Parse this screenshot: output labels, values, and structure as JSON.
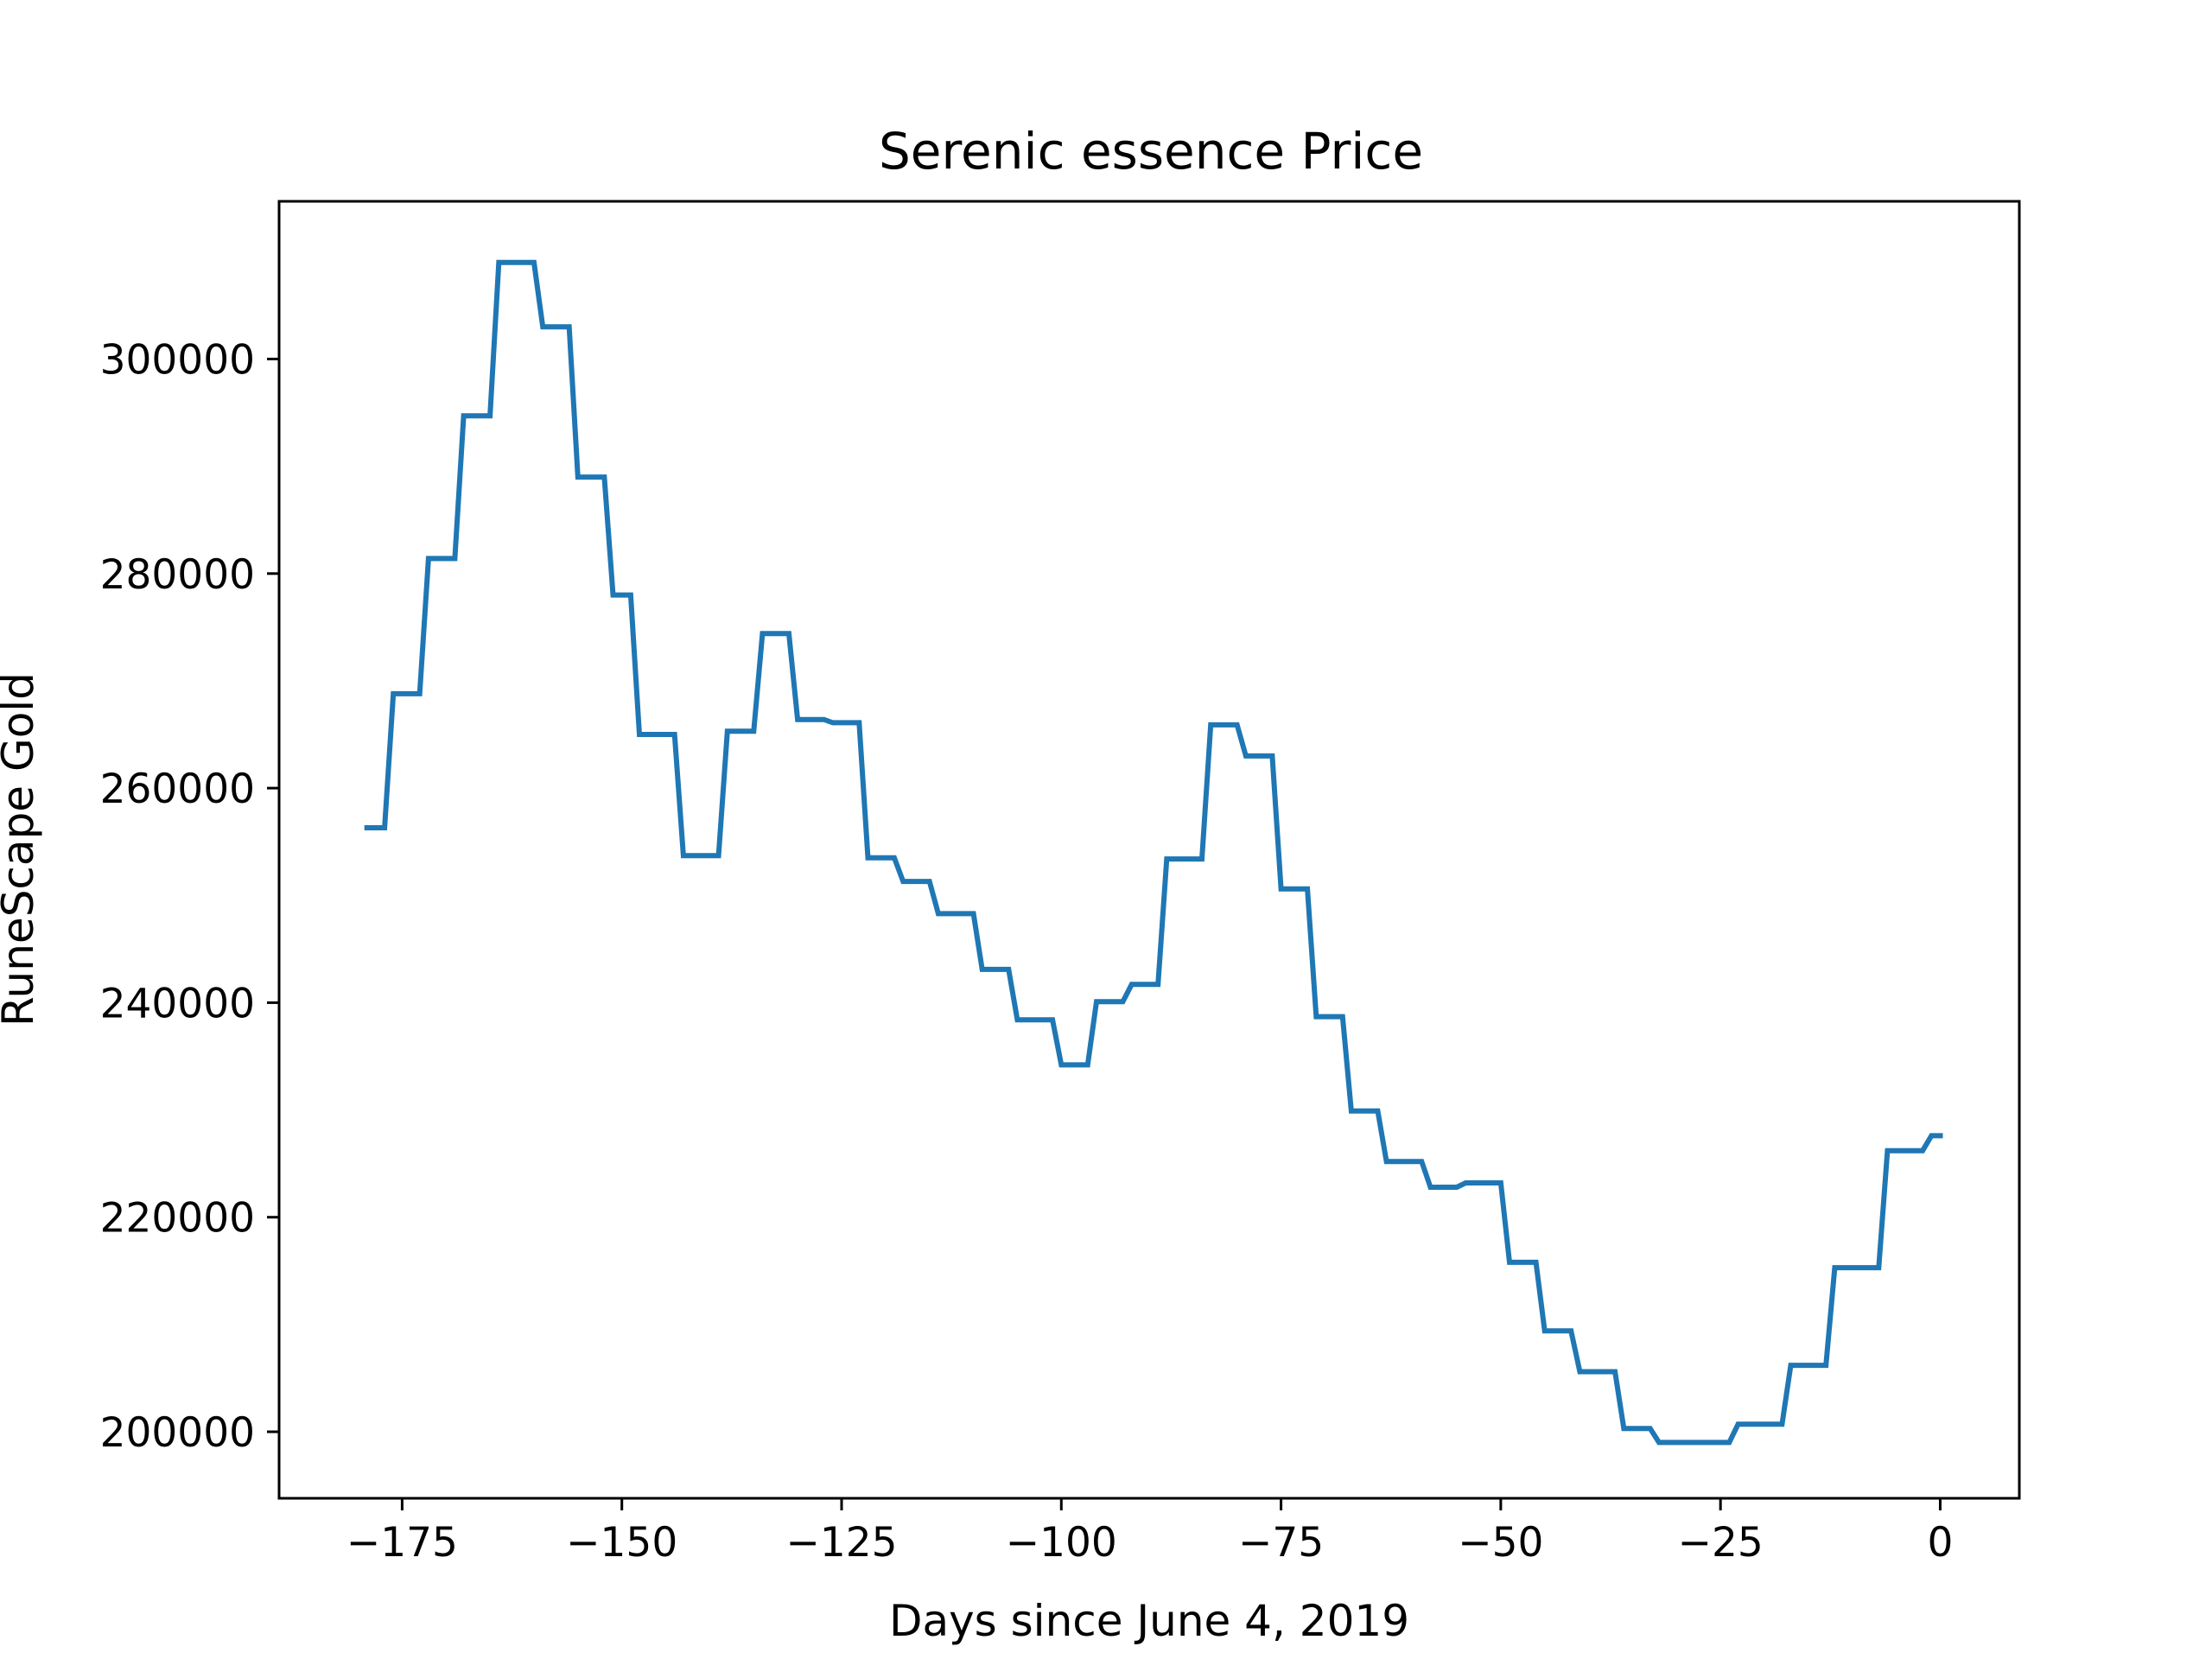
{
  "chart_data": {
    "type": "line",
    "title": "Serenic essence Price",
    "xlabel": "Days since June 4, 2019",
    "ylabel": "RuneScape Gold",
    "xlim": [
      -189,
      9
    ],
    "ylim": [
      193800,
      314700
    ],
    "xticks": [
      -175,
      -150,
      -125,
      -100,
      -75,
      -50,
      -25,
      0
    ],
    "xtick_labels": [
      "−175",
      "−150",
      "−125",
      "−100",
      "−75",
      "−50",
      "−25",
      "0"
    ],
    "yticks": [
      200000,
      220000,
      240000,
      260000,
      280000,
      300000
    ],
    "ytick_labels": [
      "200000",
      "220000",
      "240000",
      "260000",
      "280000",
      "300000"
    ],
    "grid": false,
    "series": [
      {
        "color": "#1f77b4",
        "x": [
          -179,
          -177,
          -176,
          -173,
          -172,
          -169,
          -168,
          -165,
          -164,
          -160,
          -159,
          -156,
          -155,
          -152,
          -151,
          -149,
          -148,
          -144,
          -143,
          -139,
          -138,
          -135,
          -134,
          -131,
          -130,
          -127,
          -126,
          -123,
          -122,
          -119,
          -118,
          -115,
          -114,
          -110,
          -109,
          -106,
          -105,
          -101,
          -100,
          -97,
          -96,
          -93,
          -92,
          -89,
          -88,
          -84,
          -83,
          -80,
          -79,
          -76,
          -75,
          -72,
          -71,
          -68,
          -67,
          -64,
          -63,
          -59,
          -58,
          -55,
          -54,
          -50,
          -49,
          -46,
          -45,
          -42,
          -41,
          -37,
          -36,
          -33,
          -32,
          -29,
          -28,
          -24,
          -23,
          -18,
          -17,
          -13,
          -12,
          -7,
          -6,
          -2,
          -1,
          0
        ],
        "y": [
          256300,
          256300,
          268800,
          268800,
          281400,
          281400,
          294700,
          294700,
          309000,
          309000,
          303000,
          303000,
          289000,
          289000,
          278000,
          278000,
          265000,
          265000,
          253700,
          253700,
          265300,
          265300,
          274400,
          274400,
          266400,
          266400,
          266100,
          266100,
          253500,
          253500,
          251300,
          251300,
          248300,
          248300,
          243100,
          243100,
          238400,
          238400,
          234200,
          234200,
          240100,
          240100,
          241700,
          241700,
          253400,
          253400,
          265900,
          265900,
          263000,
          263000,
          250600,
          250600,
          238700,
          238700,
          229900,
          229900,
          225200,
          225200,
          222800,
          222800,
          223200,
          223200,
          215800,
          215800,
          209400,
          209400,
          205600,
          205600,
          200300,
          200300,
          199000,
          199000,
          199000,
          199000,
          200700,
          200700,
          206200,
          206200,
          215300,
          215300,
          226200,
          226200,
          227600,
          227600
        ]
      }
    ]
  }
}
